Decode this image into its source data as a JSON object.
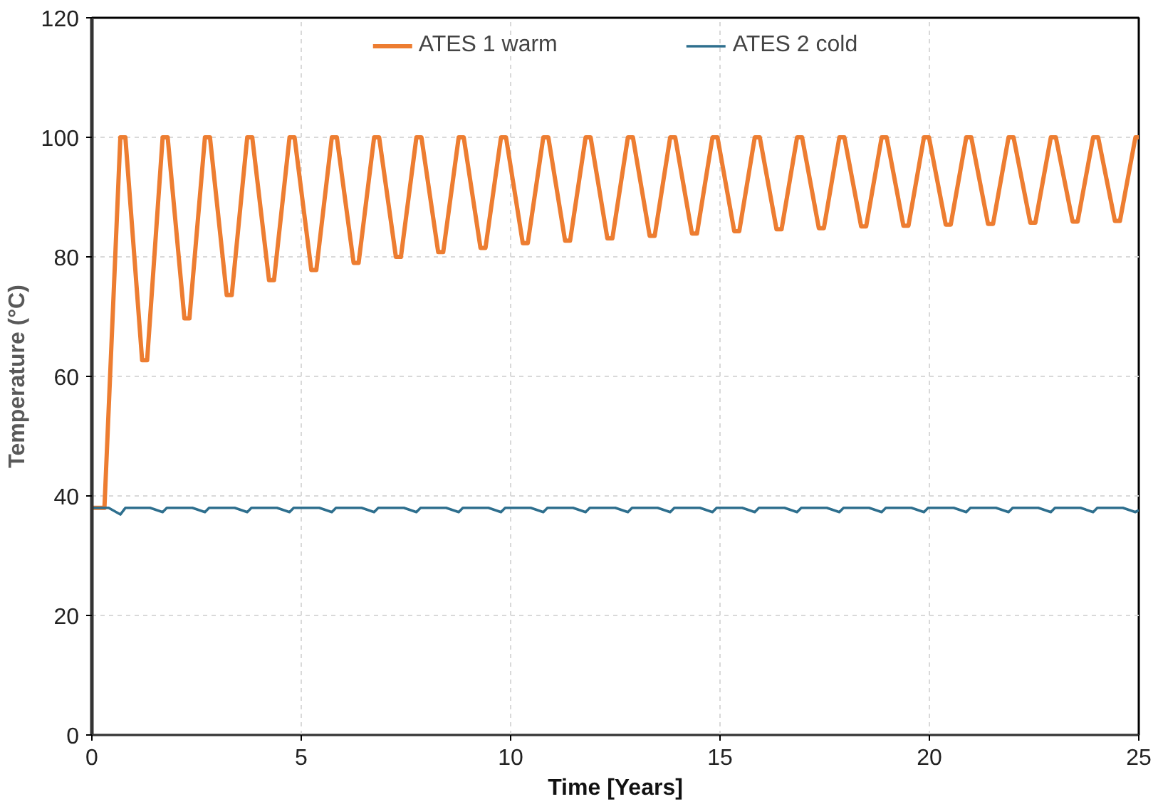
{
  "chart_data": {
    "type": "line",
    "xlabel": "Time [Years]",
    "ylabel": "Temperature (°C)",
    "xlim": [
      0,
      25
    ],
    "xticks": [
      0,
      5,
      10,
      15,
      20,
      25
    ],
    "ylim": [
      0,
      120
    ],
    "yticks": [
      0,
      20,
      40,
      60,
      80,
      100,
      120
    ],
    "grid": true,
    "legend": "top",
    "line_style": "solid",
    "series": [
      {
        "name": "ATES 1 warm",
        "color": "#ed7d31",
        "x": [
          0,
          0.3,
          0.68,
          0.8,
          1.2,
          1.32,
          1.69,
          1.81,
          2.21,
          2.33,
          2.7,
          2.82,
          3.22,
          3.34,
          3.71,
          3.83,
          4.23,
          4.35,
          4.72,
          4.84,
          5.24,
          5.36,
          5.73,
          5.85,
          6.25,
          6.37,
          6.74,
          6.86,
          7.26,
          7.38,
          7.75,
          7.87,
          8.27,
          8.39,
          8.76,
          8.88,
          9.28,
          9.4,
          9.77,
          9.89,
          10.29,
          10.41,
          10.78,
          10.9,
          11.3,
          11.42,
          11.79,
          11.91,
          12.31,
          12.43,
          12.8,
          12.92,
          13.32,
          13.44,
          13.81,
          13.93,
          14.33,
          14.45,
          14.82,
          14.94,
          15.34,
          15.46,
          15.83,
          15.95,
          16.35,
          16.47,
          16.84,
          16.96,
          17.36,
          17.48,
          17.85,
          17.97,
          18.37,
          18.49,
          18.86,
          18.98,
          19.38,
          19.5,
          19.87,
          19.99,
          20.39,
          20.51,
          20.88,
          21.0,
          21.4,
          21.52,
          21.89,
          22.01,
          22.41,
          22.53,
          22.9,
          23.02,
          23.42,
          23.54,
          23.91,
          24.03,
          24.43,
          24.55,
          24.92,
          25
        ],
        "values": [
          38,
          38,
          100,
          100,
          62.7,
          62.7,
          100,
          100,
          69.7,
          69.7,
          100,
          100,
          73.6,
          73.6,
          100,
          100,
          76.1,
          76.1,
          100,
          100,
          77.8,
          77.8,
          100,
          100,
          79.0,
          79.0,
          100,
          100,
          80.0,
          80.0,
          100,
          100,
          80.8,
          80.8,
          100,
          100,
          81.5,
          81.5,
          100,
          100,
          82.3,
          82.3,
          100,
          100,
          82.7,
          82.7,
          100,
          100,
          83.1,
          83.1,
          100,
          100,
          83.5,
          83.5,
          100,
          100,
          83.9,
          83.9,
          100,
          100,
          84.3,
          84.3,
          100,
          100,
          84.6,
          84.6,
          100,
          100,
          84.8,
          84.8,
          100,
          100,
          85.1,
          85.1,
          100,
          100,
          85.2,
          85.2,
          100,
          100,
          85.4,
          85.4,
          100,
          100,
          85.5,
          85.5,
          100,
          100,
          85.7,
          85.7,
          100,
          100,
          85.9,
          85.9,
          100,
          100,
          86.0,
          86.0,
          100,
          100
        ]
      },
      {
        "name": "ATES 2 cold",
        "color": "#2e6f8e",
        "x": [
          0,
          0.4,
          0.68,
          0.8,
          1.39,
          1.69,
          1.79,
          2.4,
          2.7,
          2.8,
          3.41,
          3.71,
          3.81,
          4.42,
          4.72,
          4.82,
          5.43,
          5.73,
          5.83,
          6.44,
          6.74,
          6.84,
          7.45,
          7.75,
          7.85,
          8.46,
          8.76,
          8.86,
          9.47,
          9.77,
          9.87,
          10.48,
          10.78,
          10.88,
          11.49,
          11.79,
          11.89,
          12.5,
          12.8,
          12.9,
          13.51,
          13.81,
          13.91,
          14.52,
          14.82,
          14.92,
          15.53,
          15.83,
          15.93,
          16.54,
          16.84,
          16.94,
          17.55,
          17.85,
          17.95,
          18.56,
          18.86,
          18.96,
          19.57,
          19.87,
          19.97,
          20.58,
          20.88,
          20.98,
          21.59,
          21.89,
          21.99,
          22.6,
          22.9,
          23.0,
          23.61,
          23.91,
          24.01,
          24.62,
          24.92,
          25
        ],
        "values": [
          38,
          38,
          36.9,
          38,
          38,
          37.3,
          38,
          38,
          37.3,
          38,
          38,
          37.3,
          38,
          38,
          37.3,
          38,
          38,
          37.3,
          38,
          38,
          37.3,
          38,
          38,
          37.3,
          38,
          38,
          37.3,
          38,
          38,
          37.3,
          38,
          38,
          37.3,
          38,
          38,
          37.3,
          38,
          38,
          37.3,
          38,
          38,
          37.3,
          38,
          38,
          37.3,
          38,
          38,
          37.3,
          38,
          38,
          37.3,
          38,
          38,
          37.3,
          38,
          38,
          37.3,
          38,
          38,
          37.3,
          38,
          38,
          37.3,
          38,
          38,
          37.3,
          38,
          38,
          37.3,
          38,
          38,
          37.3,
          38,
          38,
          37.3,
          37.6
        ]
      }
    ]
  }
}
